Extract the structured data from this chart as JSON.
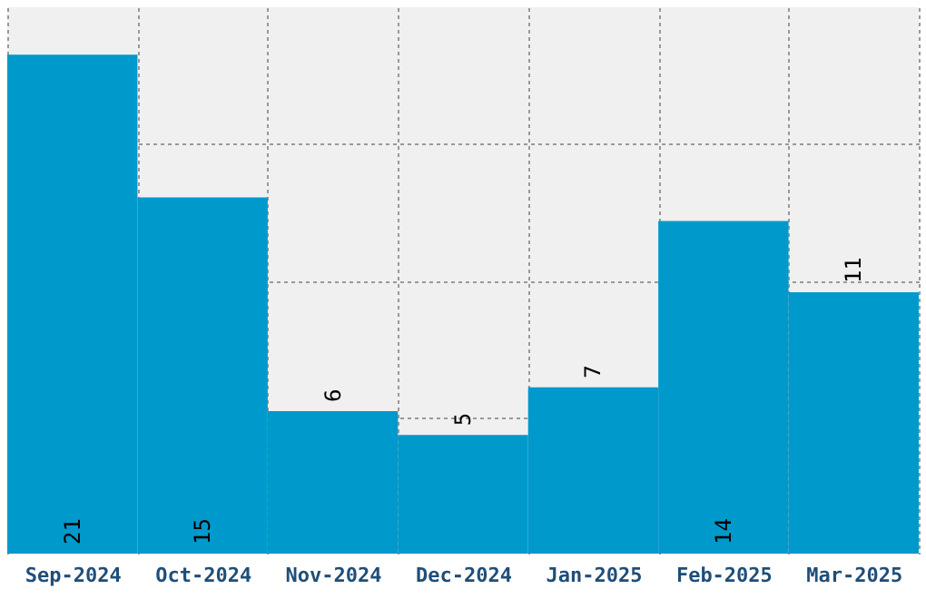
{
  "chart_data": {
    "type": "bar",
    "categories": [
      "Sep-2024",
      "Oct-2024",
      "Nov-2024",
      "Dec-2024",
      "Jan-2025",
      "Feb-2025",
      "Mar-2025"
    ],
    "values": [
      21,
      15,
      6,
      5,
      7,
      14,
      11
    ],
    "color": "#0099cc",
    "ylim": [
      0,
      23
    ],
    "yticks": [
      {
        "value": 5.75,
        "label": null
      },
      {
        "value": 11.5,
        "label": null
      },
      {
        "value": 17.25,
        "label": null
      }
    ],
    "tick_labels": "x",
    "grid": true,
    "data_labels": true
  }
}
